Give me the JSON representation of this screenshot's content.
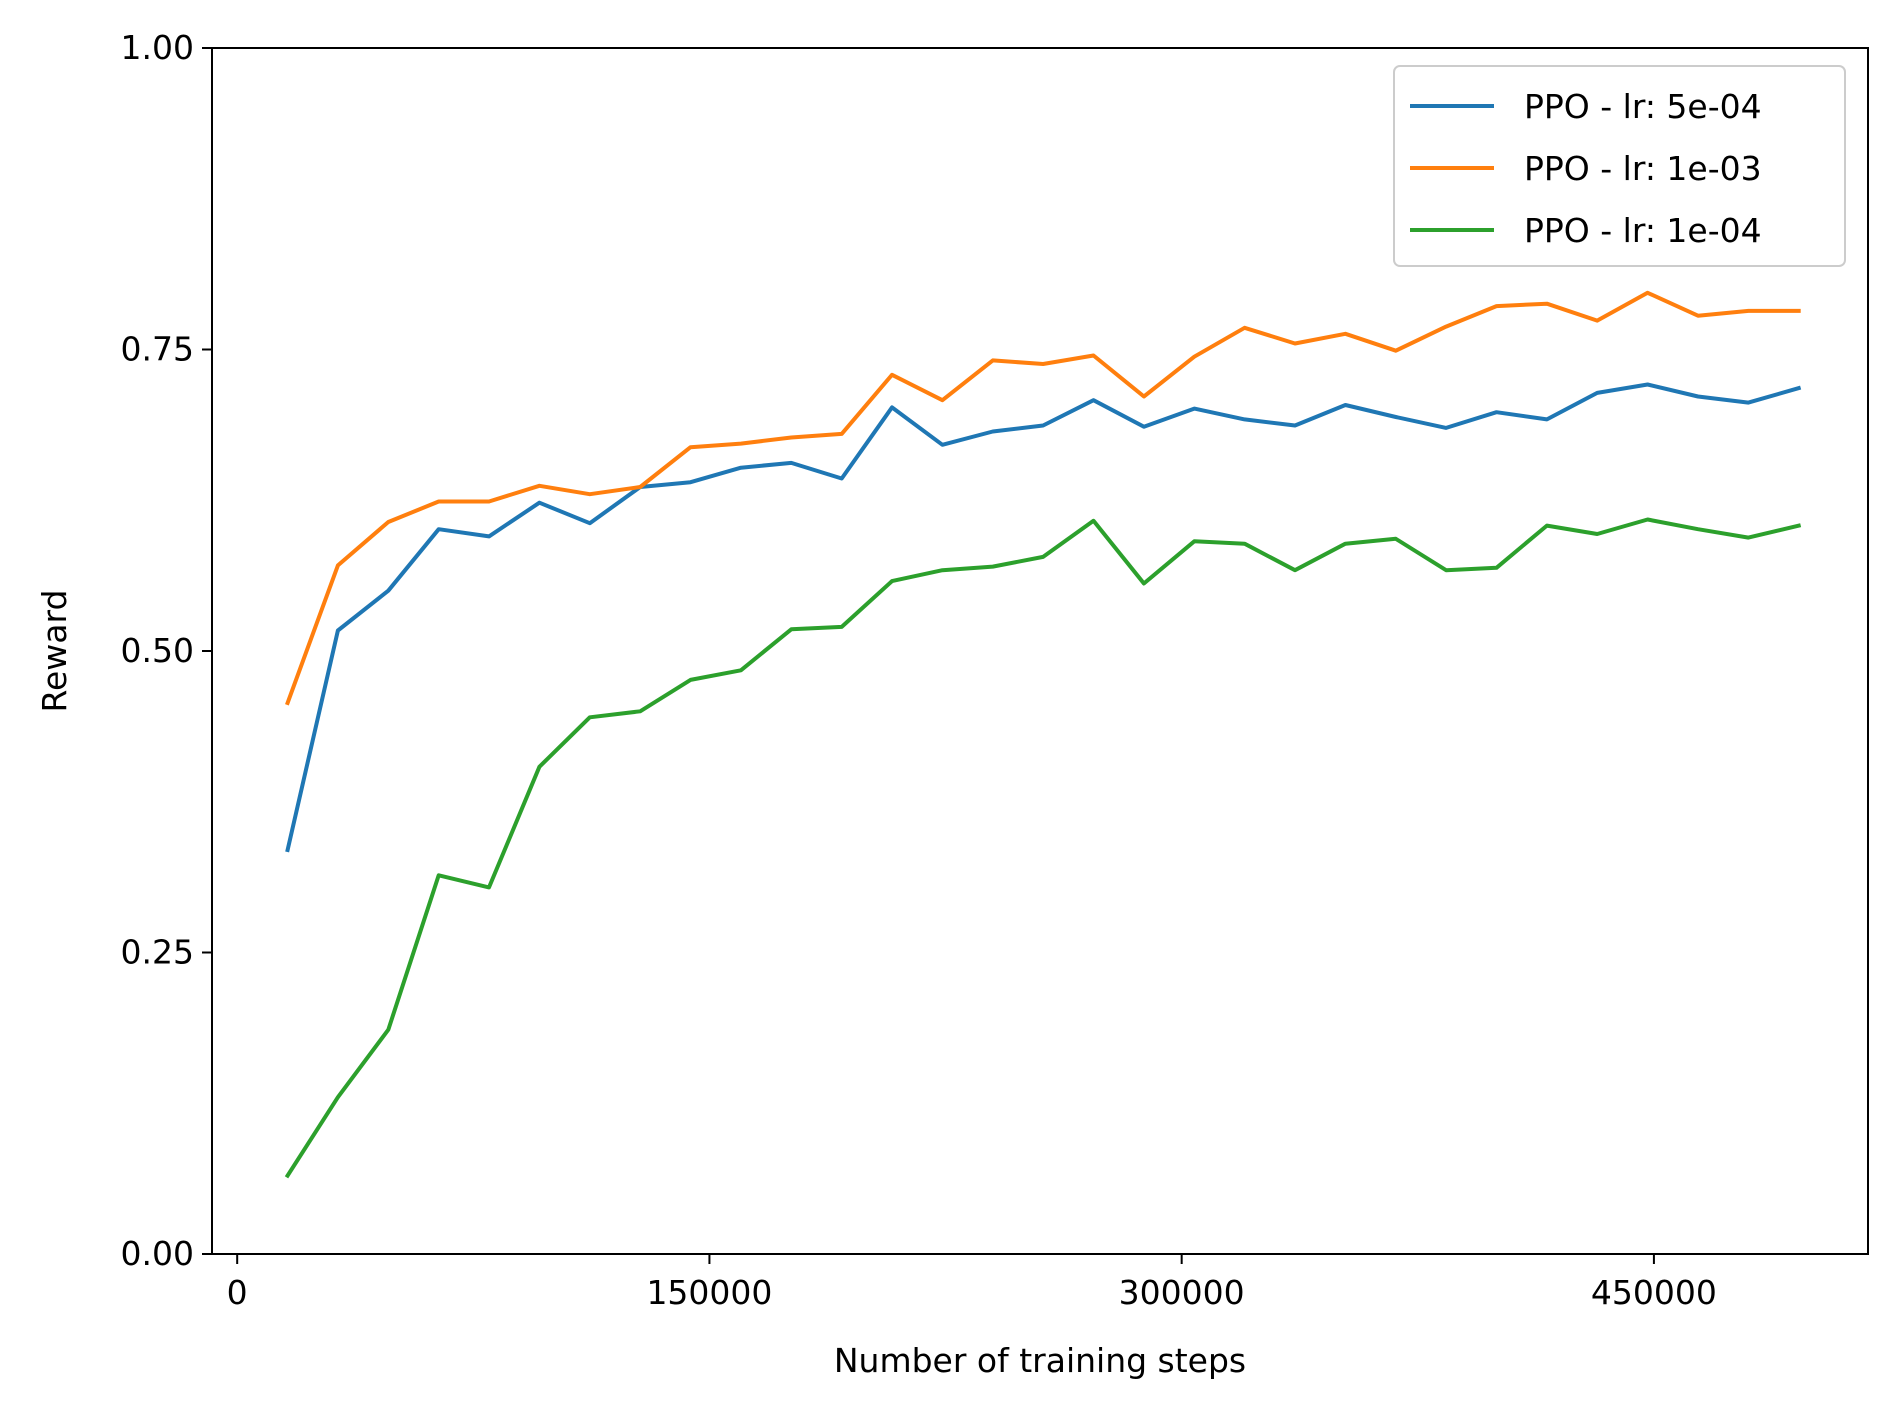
{
  "chart_data": {
    "type": "line",
    "title": "",
    "xlabel": "Number of training steps",
    "ylabel": "Reward",
    "xlim": [
      -8000,
      518000
    ],
    "ylim": [
      0.0,
      1.0
    ],
    "xticks": [
      0,
      150000,
      300000,
      450000
    ],
    "xtick_labels": [
      "0",
      "150000",
      "300000",
      "450000"
    ],
    "yticks": [
      0.0,
      0.25,
      0.5,
      0.75,
      1.0
    ],
    "ytick_labels": [
      "0.00",
      "0.25",
      "0.50",
      "0.75",
      "1.00"
    ],
    "grid": false,
    "legend_position": "top-right",
    "x": [
      16000,
      32000,
      48000,
      64000,
      80000,
      96000,
      112000,
      128000,
      144000,
      160000,
      176000,
      192000,
      208000,
      224000,
      240000,
      256000,
      272000,
      288000,
      304000,
      320000,
      336000,
      352000,
      368000,
      384000,
      400000,
      416000,
      432000,
      448000,
      464000,
      480000,
      496000
    ],
    "series": [
      {
        "name": "PPO - lr: 5e-04",
        "color": "#1f77b4",
        "values": [
          0.335,
          0.517,
          0.55,
          0.601,
          0.595,
          0.623,
          0.606,
          0.636,
          0.64,
          0.652,
          0.656,
          0.643,
          0.702,
          0.671,
          0.682,
          0.687,
          0.708,
          0.686,
          0.701,
          0.692,
          0.687,
          0.704,
          0.694,
          0.685,
          0.698,
          0.692,
          0.714,
          0.721,
          0.711,
          0.706,
          0.718
        ]
      },
      {
        "name": "PPO - lr: 1e-03",
        "color": "#ff7f0e",
        "values": [
          0.457,
          0.571,
          0.607,
          0.624,
          0.624,
          0.637,
          0.63,
          0.636,
          0.669,
          0.672,
          0.677,
          0.68,
          0.729,
          0.708,
          0.741,
          0.738,
          0.745,
          0.711,
          0.744,
          0.768,
          0.755,
          0.763,
          0.749,
          0.769,
          0.786,
          0.788,
          0.774,
          0.797,
          0.778,
          0.782,
          0.782
        ]
      },
      {
        "name": "PPO - lr: 1e-04",
        "color": "#2ca02c",
        "values": [
          0.065,
          0.13,
          0.186,
          0.314,
          0.304,
          0.404,
          0.445,
          0.45,
          0.476,
          0.484,
          0.518,
          0.52,
          0.558,
          0.567,
          0.57,
          0.578,
          0.608,
          0.556,
          0.591,
          0.589,
          0.567,
          0.589,
          0.593,
          0.567,
          0.569,
          0.604,
          0.597,
          0.609,
          0.601,
          0.594,
          0.604
        ]
      }
    ]
  }
}
